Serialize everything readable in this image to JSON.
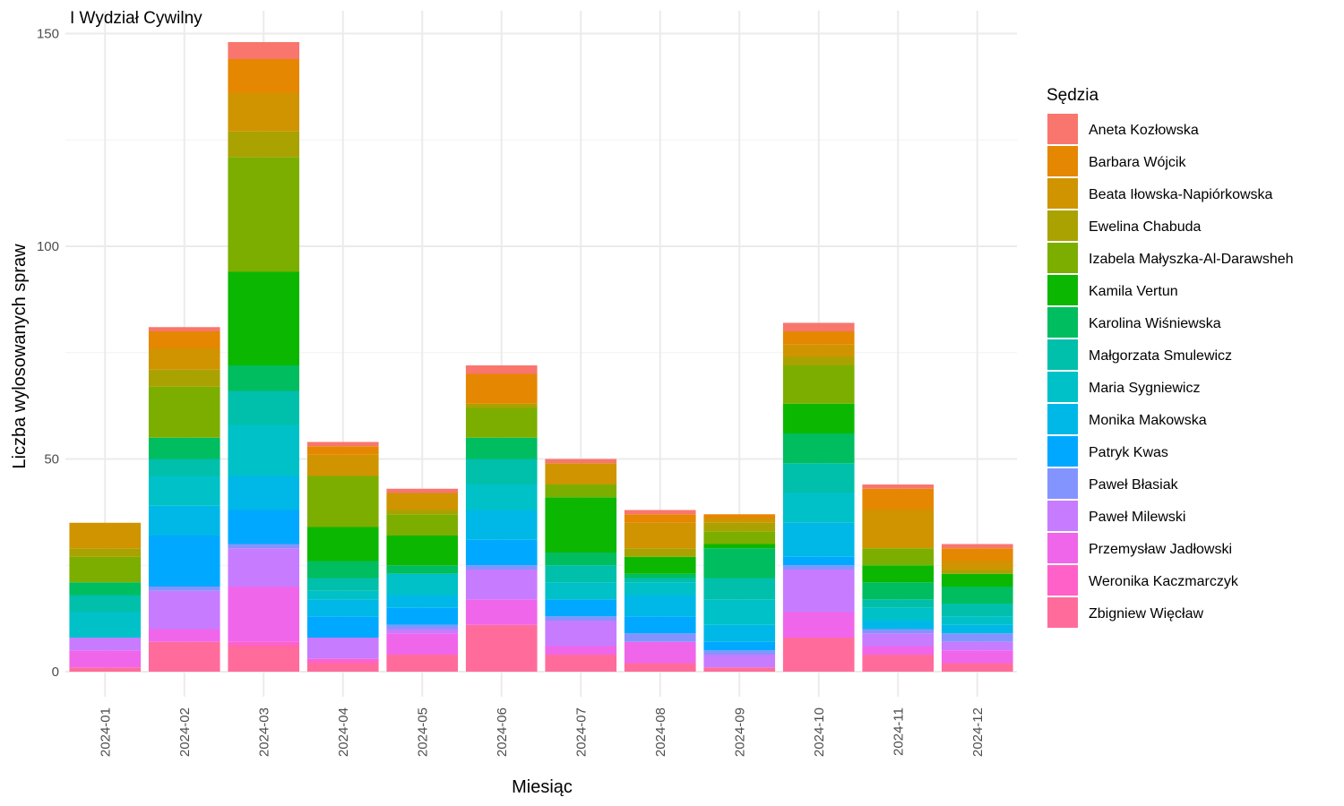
{
  "chart_data": {
    "type": "bar",
    "stacked": true,
    "title": "I Wydział Cywilny",
    "xlabel": "Miesiąc",
    "ylabel": "Liczba wylosowanych spraw",
    "ylim": [
      0,
      155
    ],
    "yticks": [
      0,
      50,
      100,
      150
    ],
    "grid": true,
    "legend_title": "Sędzia",
    "legend_position": "right",
    "categories": [
      "2024-01",
      "2024-02",
      "2024-03",
      "2024-04",
      "2024-05",
      "2024-06",
      "2024-07",
      "2024-08",
      "2024-09",
      "2024-10",
      "2024-11",
      "2024-12"
    ],
    "series": [
      {
        "name": "Zbigniew Więcław",
        "color": "#FF6C9C",
        "values": [
          1,
          7,
          6,
          2,
          4,
          11,
          4,
          2,
          1,
          8,
          4,
          2
        ]
      },
      {
        "name": "Weronika Kaczmarczyk",
        "color": "#FF61C9",
        "values": [
          0,
          0,
          1,
          1,
          0,
          0,
          0,
          0,
          0,
          0,
          0,
          0
        ]
      },
      {
        "name": "Przemysław Jadłowski",
        "color": "#F066EA",
        "values": [
          4,
          3,
          13,
          0,
          5,
          6,
          2,
          5,
          0,
          6,
          2,
          3
        ]
      },
      {
        "name": "Paweł Milewski",
        "color": "#C77CFF",
        "values": [
          3,
          9,
          9,
          5,
          1,
          7,
          6,
          0,
          3,
          10,
          3,
          2
        ]
      },
      {
        "name": "Paweł Błasiak",
        "color": "#8494FF",
        "values": [
          0,
          1,
          1,
          0,
          1,
          1,
          1,
          2,
          1,
          1,
          1,
          2
        ]
      },
      {
        "name": "Patryk Kwas",
        "color": "#00A9FF",
        "values": [
          0,
          12,
          8,
          5,
          4,
          6,
          4,
          4,
          2,
          2,
          0,
          0
        ]
      },
      {
        "name": "Monika Makowska",
        "color": "#00B8E7",
        "values": [
          0,
          7,
          8,
          4,
          3,
          7,
          0,
          5,
          4,
          8,
          2,
          2
        ]
      },
      {
        "name": "Maria Sygniewicz",
        "color": "#00C1C8",
        "values": [
          6,
          7,
          12,
          2,
          5,
          6,
          4,
          3,
          6,
          7,
          3,
          2
        ]
      },
      {
        "name": "Małgorzata Smulewicz",
        "color": "#00C0AB",
        "values": [
          4,
          4,
          8,
          3,
          0,
          6,
          4,
          1,
          5,
          7,
          2,
          3
        ]
      },
      {
        "name": "Karolina Wiśniewska",
        "color": "#00BD5F",
        "values": [
          3,
          5,
          6,
          4,
          2,
          5,
          3,
          1,
          7,
          7,
          4,
          4
        ]
      },
      {
        "name": "Kamila Vertun",
        "color": "#0CB702",
        "values": [
          0,
          0,
          22,
          8,
          7,
          0,
          13,
          4,
          1,
          7,
          4,
          3
        ]
      },
      {
        "name": "Izabela Małyszka-Al-Darawsheh",
        "color": "#7CAE00",
        "values": [
          6,
          12,
          27,
          12,
          5,
          7,
          3,
          0,
          3,
          9,
          4,
          0
        ]
      },
      {
        "name": "Ewelina Chabuda",
        "color": "#AAA200",
        "values": [
          2,
          4,
          6,
          0,
          1,
          1,
          0,
          2,
          2,
          2,
          0,
          1
        ]
      },
      {
        "name": "Beata Iłowska-Napiórkowska",
        "color": "#CF9400",
        "values": [
          6,
          5,
          9,
          5,
          4,
          0,
          5,
          6,
          1,
          3,
          9,
          2
        ]
      },
      {
        "name": "Barbara Wójcik",
        "color": "#E58700",
        "values": [
          0,
          4,
          8,
          2,
          0,
          7,
          0,
          2,
          1,
          3,
          5,
          3
        ]
      },
      {
        "name": "Aneta Kozłowska",
        "color": "#F8766D",
        "values": [
          0,
          1,
          4,
          1,
          1,
          2,
          1,
          1,
          0,
          2,
          1,
          1
        ]
      }
    ]
  }
}
